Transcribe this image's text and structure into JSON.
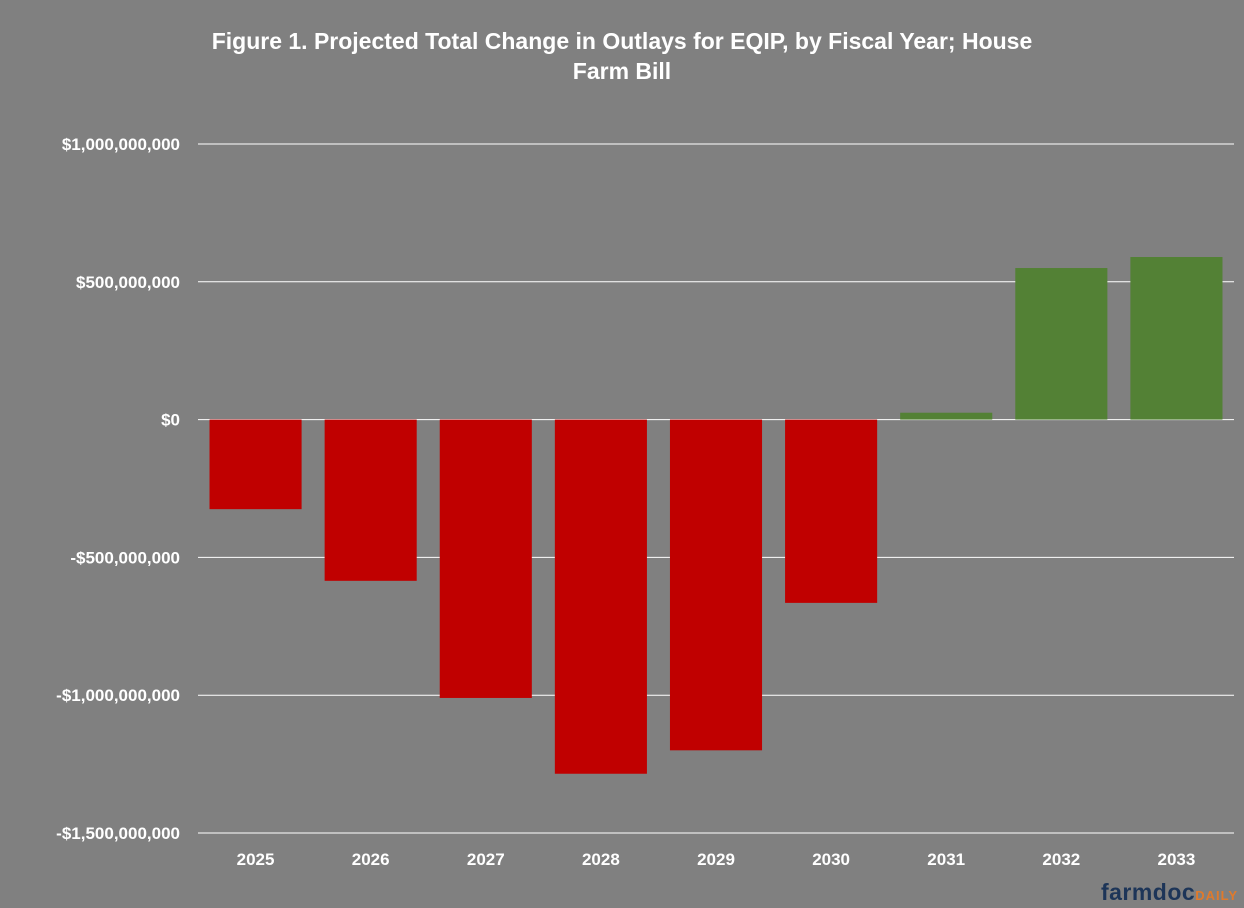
{
  "chart_data": {
    "type": "bar",
    "title_lines": [
      "Figure 1. Projected Total Change in Outlays for EQIP, by Fiscal Year; House",
      "Farm Bill"
    ],
    "categories": [
      "2025",
      "2026",
      "2027",
      "2028",
      "2029",
      "2030",
      "2031",
      "2032",
      "2033"
    ],
    "values": [
      -325000000,
      -585000000,
      -1010000000,
      -1285000000,
      -1200000000,
      -665000000,
      25000000,
      550000000,
      590000000
    ],
    "ylim": [
      -1500000000,
      1000000000
    ],
    "y_ticks": [
      1000000000,
      500000000,
      0,
      -500000000,
      -1000000000,
      -1500000000
    ],
    "y_tick_labels": [
      "$1,000,000,000",
      "$500,000,000",
      "$0",
      "-$500,000,000",
      "-$1,000,000,000",
      "-$1,500,000,000"
    ],
    "grid": true,
    "legend": "none",
    "colors": {
      "negative": "#c00000",
      "positive": "#538135",
      "background": "#808080",
      "gridline": "#ffffff",
      "text": "#ffffff"
    }
  },
  "logo": {
    "main": "farmdoc",
    "accent": "DAILY"
  }
}
